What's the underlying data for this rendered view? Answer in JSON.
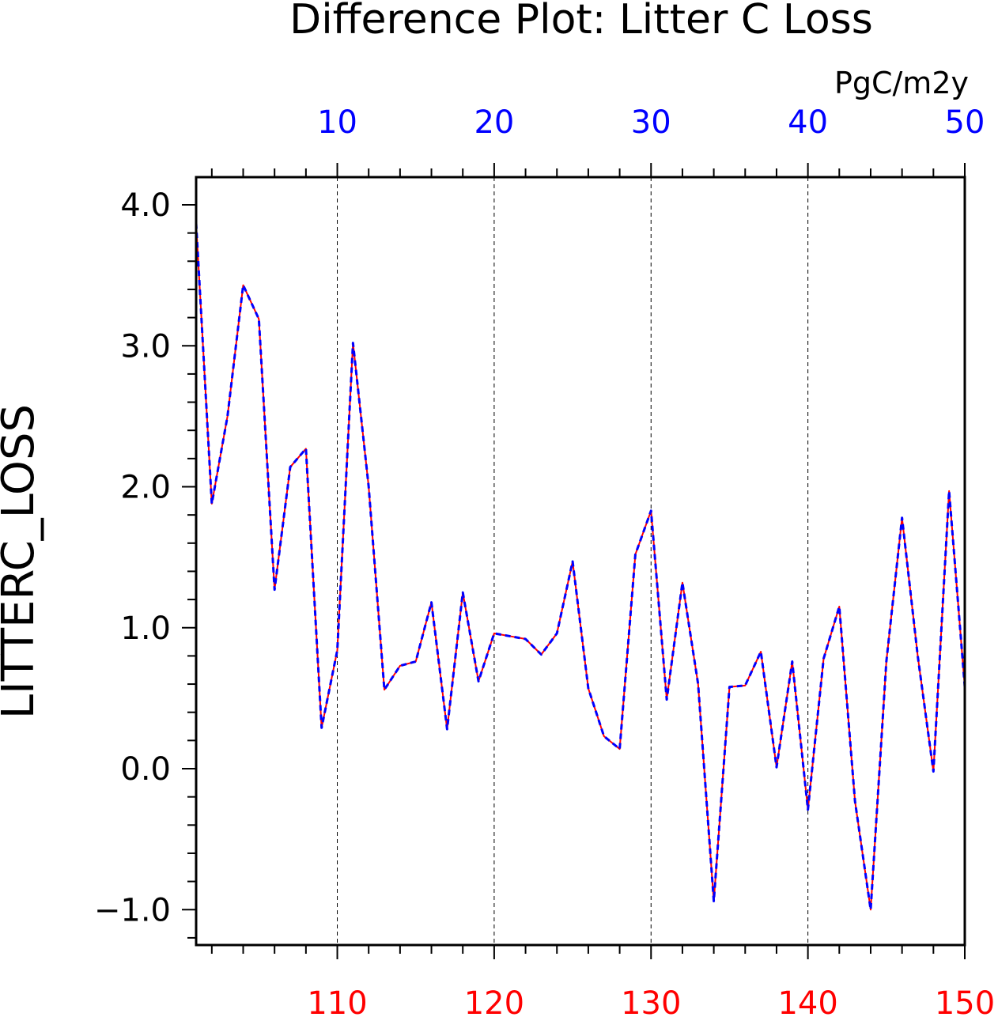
{
  "chart_data": {
    "type": "line",
    "title": "Difference Plot: Litter C Loss",
    "units": "PgC/m2y",
    "ylabel": "LITTERC_LOSS",
    "xlabel": "",
    "ylim": [
      -1.25,
      4.2
    ],
    "yticks": [
      {
        "value": -1.0,
        "label": "−1.0"
      },
      {
        "value": 0.0,
        "label": "0.0"
      },
      {
        "value": 1.0,
        "label": "1.0"
      },
      {
        "value": 2.0,
        "label": "2.0"
      },
      {
        "value": 3.0,
        "label": "3.0"
      },
      {
        "value": 4.0,
        "label": "4.0"
      }
    ],
    "x_bottom": {
      "range": [
        101,
        150
      ],
      "ticks": [
        110,
        120,
        130,
        140,
        150
      ],
      "color": "#ff0000"
    },
    "x_top": {
      "range": [
        1,
        50
      ],
      "ticks": [
        10,
        20,
        30,
        40,
        50
      ],
      "color": "#0000ff"
    },
    "grid": "vertical dashed at major ticks",
    "x": [
      101,
      102,
      103,
      104,
      105,
      106,
      107,
      108,
      109,
      110,
      111,
      112,
      113,
      114,
      115,
      116,
      117,
      118,
      119,
      120,
      121,
      122,
      123,
      124,
      125,
      126,
      127,
      128,
      129,
      130,
      131,
      132,
      133,
      134,
      135,
      136,
      137,
      138,
      139,
      140,
      141,
      142,
      143,
      144,
      145,
      146,
      147,
      148,
      149,
      150
    ],
    "series": [
      {
        "values": [
          3.87,
          1.88,
          2.5,
          3.43,
          3.19,
          1.27,
          2.14,
          2.27,
          0.29,
          0.84,
          3.02,
          2.0,
          0.56,
          0.73,
          0.76,
          1.18,
          0.28,
          1.25,
          0.62,
          0.96,
          0.94,
          0.92,
          0.81,
          0.96,
          1.47,
          0.57,
          0.23,
          0.14,
          1.52,
          1.83,
          0.49,
          1.32,
          0.6,
          -0.94,
          0.58,
          0.59,
          0.83,
          0.01,
          0.76,
          -0.29,
          0.78,
          1.15,
          -0.23,
          -1.0,
          0.76,
          1.78,
          0.8,
          -0.02,
          1.97,
          0.58
        ],
        "color": "#ff0000",
        "style": "solid"
      },
      {
        "values": [
          3.87,
          1.88,
          2.5,
          3.43,
          3.19,
          1.27,
          2.14,
          2.27,
          0.29,
          0.84,
          3.02,
          2.0,
          0.56,
          0.73,
          0.76,
          1.18,
          0.28,
          1.25,
          0.62,
          0.96,
          0.94,
          0.92,
          0.81,
          0.96,
          1.47,
          0.57,
          0.23,
          0.14,
          1.52,
          1.83,
          0.49,
          1.32,
          0.6,
          -0.94,
          0.58,
          0.59,
          0.83,
          0.01,
          0.76,
          -0.29,
          0.78,
          1.15,
          -0.23,
          -1.0,
          0.76,
          1.78,
          0.8,
          -0.02,
          1.97,
          0.58
        ],
        "color": "#0000ff",
        "style": "dashed"
      }
    ]
  }
}
